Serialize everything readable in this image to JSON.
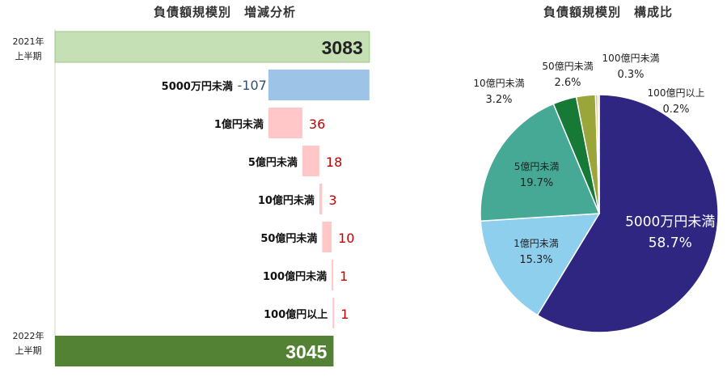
{
  "chart_data": [
    {
      "type": "bar",
      "subtype": "waterfall",
      "title": "負債額規模別　増減分析",
      "start": {
        "label_line1": "2021年",
        "label_line2": "上半期",
        "value": 3083,
        "color": "#c5e0b4"
      },
      "end": {
        "label_line1": "2022年",
        "label_line2": "上半期",
        "value": 3045,
        "color": "#548235"
      },
      "steps": [
        {
          "label": "5000万円未満",
          "value": -107,
          "display": "-107",
          "color": "#9dc3e6",
          "value_color": "#2e4f7a"
        },
        {
          "label": "1億円未満",
          "value": 36,
          "display": "36",
          "color": "#ffc7c7",
          "value_color": "#c00000"
        },
        {
          "label": "5億円未満",
          "value": 18,
          "display": "18",
          "color": "#ffc7c7",
          "value_color": "#c00000"
        },
        {
          "label": "10億円未満",
          "value": 3,
          "display": "3",
          "color": "#ffc7c7",
          "value_color": "#c00000"
        },
        {
          "label": "50億円未満",
          "value": 10,
          "display": "10",
          "color": "#ffc7c7",
          "value_color": "#c00000"
        },
        {
          "label": "100億円未満",
          "value": 1,
          "display": "1",
          "color": "#ffc7c7",
          "value_color": "#c00000"
        },
        {
          "label": "100億円以上",
          "value": 1,
          "display": "1",
          "color": "#ffc7c7",
          "value_color": "#c00000"
        }
      ],
      "xlim": [
        2750,
        3120
      ]
    },
    {
      "type": "pie",
      "title": "負債額規模別　構成比",
      "slices": [
        {
          "label": "5000万円未満",
          "value": 58.7,
          "display": "58.7%",
          "color": "#2e2680"
        },
        {
          "label": "1億円未満",
          "value": 15.3,
          "display": "15.3%",
          "color": "#8ecfee"
        },
        {
          "label": "5億円未満",
          "value": 19.7,
          "display": "19.7%",
          "color": "#45a996"
        },
        {
          "label": "10億円未満",
          "value": 3.2,
          "display": "3.2%",
          "color": "#167a36"
        },
        {
          "label": "50億円未満",
          "value": 2.6,
          "display": "2.6%",
          "color": "#9aa53a"
        },
        {
          "label": "100億円未満",
          "value": 0.3,
          "display": "0.3%",
          "color": "#d9b24a"
        },
        {
          "label": "100億円以上",
          "value": 0.2,
          "display": "0.2%",
          "color": "#c99a7a"
        }
      ]
    }
  ]
}
